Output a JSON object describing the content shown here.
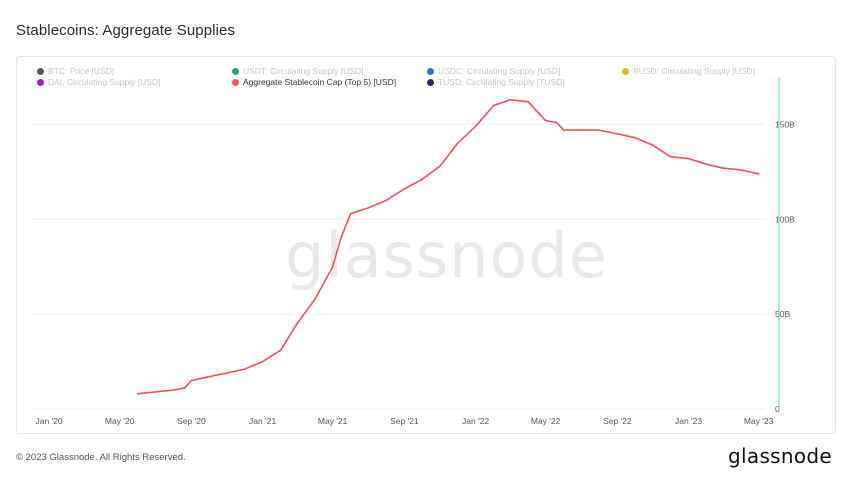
{
  "header": {
    "title": "Stablecoins: Aggregate Supplies"
  },
  "legend": [
    {
      "label": "BTC: Price [USD]",
      "color": "#555555",
      "active": false
    },
    {
      "label": "USDT: Circulating Supply [USD]",
      "color": "#26a17b",
      "active": false
    },
    {
      "label": "USDC: Circulating Supply [USD]",
      "color": "#2775ca",
      "active": false
    },
    {
      "label": "BUSD: Circulating Supply [USD]",
      "color": "#d6c018",
      "active": false
    },
    {
      "label": "DAI: Circulating Supply [USD]",
      "color": "#a020c8",
      "active": false
    },
    {
      "label": "Aggregate Stablecoin Cap (Top 5) [USD]",
      "color": "#f05454",
      "active": true
    },
    {
      "label": "TUSD: Circulating Supply [TUSD]",
      "color": "#1b2a6b",
      "active": false
    }
  ],
  "watermark": "glassnode",
  "footer": {
    "copyright": "© 2023 Glassnode. All Rights Reserved.",
    "brand": "glassnode"
  },
  "chart_data": {
    "type": "line",
    "title": "Stablecoins: Aggregate Supplies",
    "xlabel": "",
    "ylabel": "",
    "x_tick_labels": [
      "Jan '20",
      "May '20",
      "Sep '20",
      "Jan '21",
      "May '21",
      "Sep '21",
      "Jan '22",
      "May '22",
      "Sep '22",
      "Jan '23",
      "May '23"
    ],
    "y_tick_labels": [
      "0",
      "50B",
      "100B",
      "150B"
    ],
    "ylim": [
      0,
      175
    ],
    "y_unit": "B USD",
    "grid": true,
    "legend_position": "top",
    "accent_line": "#55d6c2",
    "series": [
      {
        "name": "Aggregate Stablecoin Cap (Top 5) [USD]",
        "color": "#f05454",
        "x": [
          "2020-06-01",
          "2020-07-01",
          "2020-08-01",
          "2020-08-20",
          "2020-09-01",
          "2020-10-01",
          "2020-11-01",
          "2020-12-01",
          "2021-01-01",
          "2021-02-01",
          "2021-03-01",
          "2021-04-01",
          "2021-05-01",
          "2021-05-15",
          "2021-06-01",
          "2021-07-01",
          "2021-08-01",
          "2021-09-01",
          "2021-10-01",
          "2021-11-01",
          "2021-12-01",
          "2022-01-01",
          "2022-02-01",
          "2022-03-01",
          "2022-04-01",
          "2022-05-01",
          "2022-05-20",
          "2022-06-01",
          "2022-07-01",
          "2022-08-01",
          "2022-09-01",
          "2022-10-01",
          "2022-11-01",
          "2022-12-01",
          "2023-01-01",
          "2023-02-01",
          "2023-03-01",
          "2023-04-01",
          "2023-05-01"
        ],
        "values": [
          8,
          9,
          10,
          11,
          15,
          17,
          19,
          21,
          25,
          31,
          45,
          58,
          75,
          90,
          103,
          106,
          110,
          116,
          121,
          128,
          140,
          149,
          160,
          163,
          162,
          152,
          151,
          147,
          147,
          147,
          145,
          143,
          139,
          133,
          132,
          129,
          127,
          126,
          124
        ]
      }
    ]
  }
}
